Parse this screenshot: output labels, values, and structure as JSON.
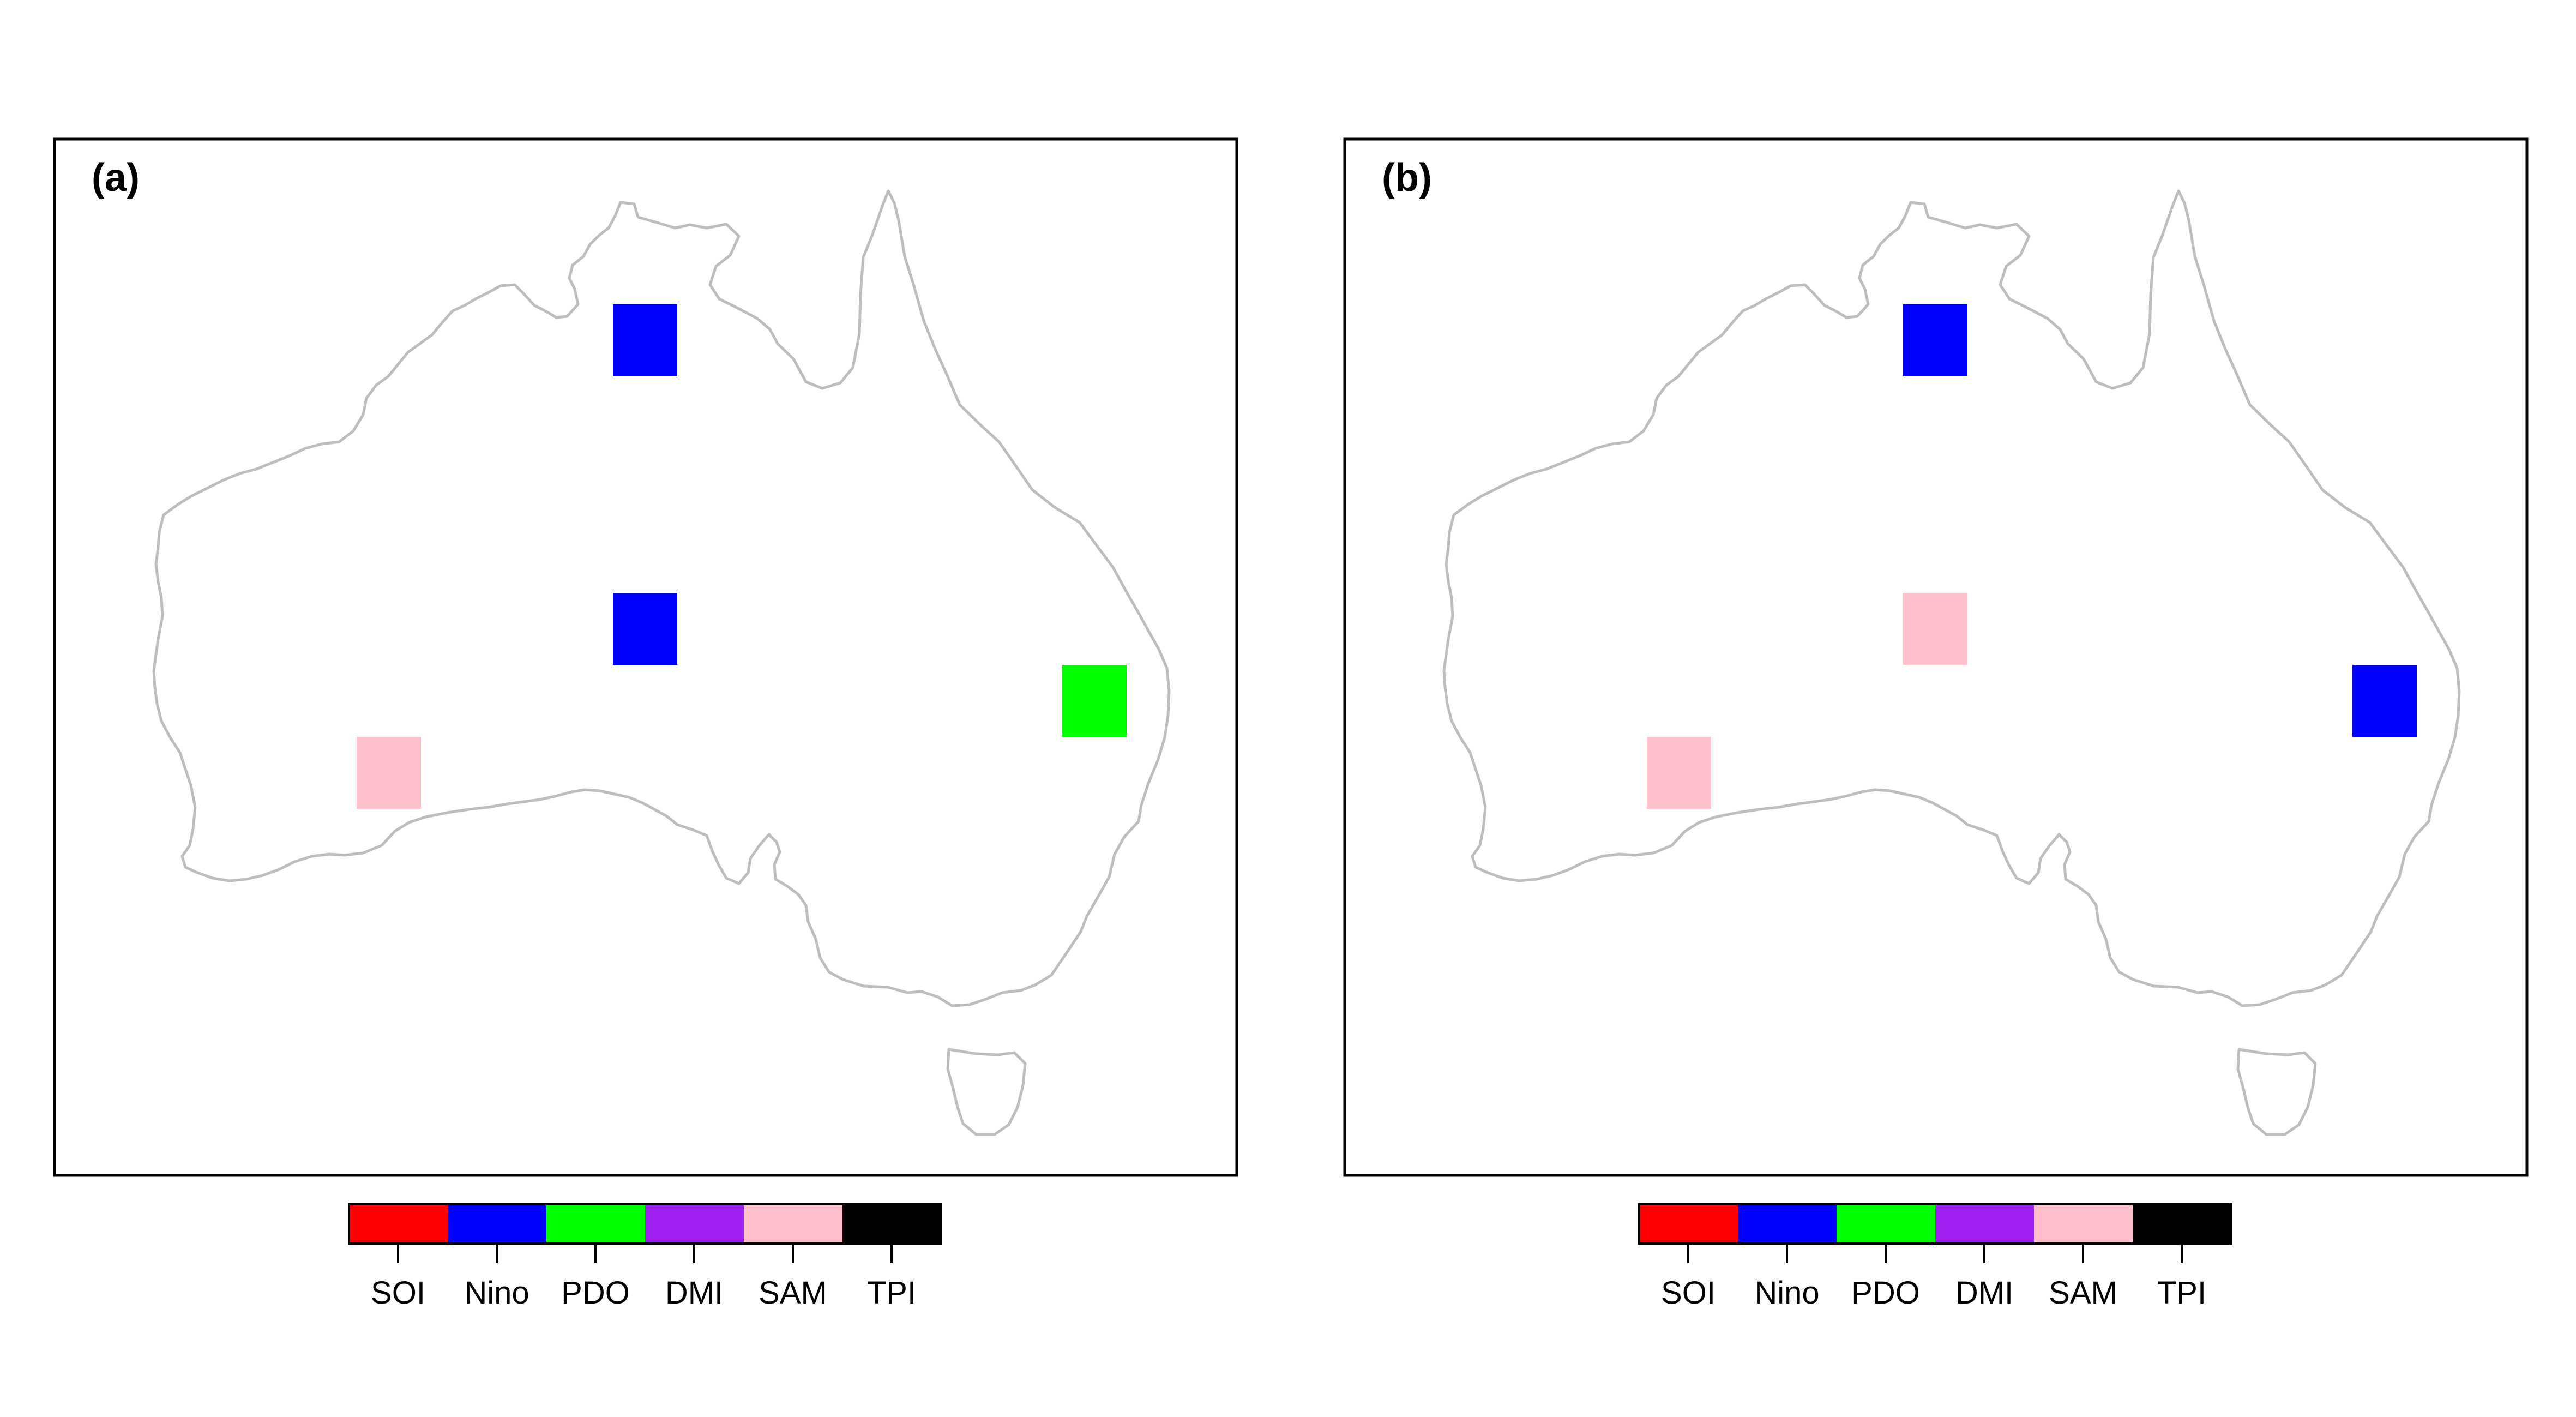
{
  "panels": [
    {
      "label": "(a)",
      "cells": [
        {
          "index": "Nino"
        },
        {
          "index": "Nino"
        },
        {
          "index": "PDO"
        },
        {
          "index": "SAM"
        }
      ]
    },
    {
      "label": "(b)",
      "cells": [
        {
          "index": "Nino"
        },
        {
          "index": "SAM"
        },
        {
          "index": "Nino"
        },
        {
          "index": "SAM"
        }
      ]
    }
  ],
  "legend": {
    "items": [
      {
        "label": "SOI",
        "color": "#ff0000"
      },
      {
        "label": "Nino",
        "color": "#0000ff"
      },
      {
        "label": "PDO",
        "color": "#00ff00"
      },
      {
        "label": "DMI",
        "color": "#a020f0"
      },
      {
        "label": "SAM",
        "color": "#ffc0cb"
      },
      {
        "label": "TPI",
        "color": "#000000"
      }
    ]
  },
  "colors": {
    "coastline": "#bdbdbd",
    "frame": "#000000",
    "background": "#ffffff"
  }
}
